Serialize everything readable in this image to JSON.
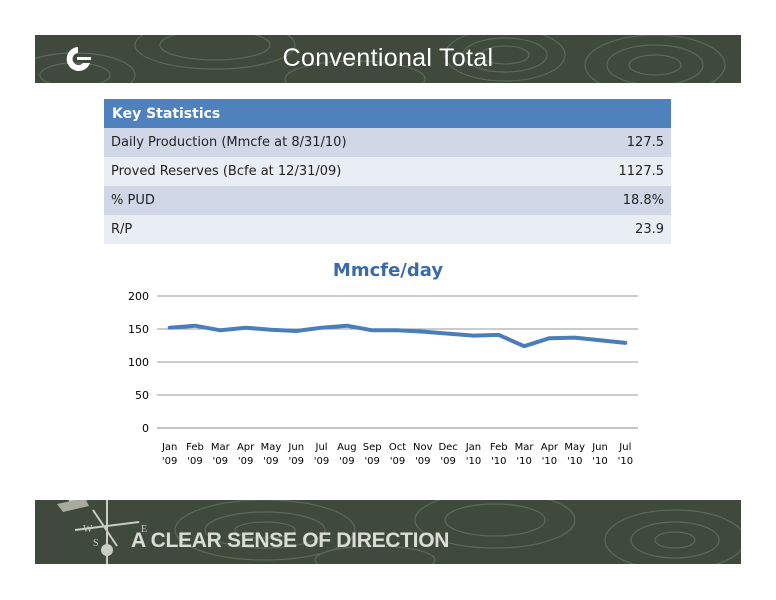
{
  "header": {
    "title": "Conventional Total",
    "logo_icon": "company-logo-icon",
    "banner_color": "#3f4a3d"
  },
  "stats": {
    "heading": "Key Statistics",
    "header_color": "#4f81bd",
    "rows": [
      {
        "label": "Daily Production (Mmcfe at 8/31/10)",
        "value": "127.5"
      },
      {
        "label": "Proved Reserves (Bcfe at 12/31/09)",
        "value": "1127.5"
      },
      {
        "label": "% PUD",
        "value": "18.8%"
      },
      {
        "label": "R/P",
        "value": "23.9"
      }
    ]
  },
  "chart_data": {
    "type": "line",
    "title": "Mmcfe/day",
    "categories": [
      [
        "Jan",
        "'09"
      ],
      [
        "Feb",
        "'09"
      ],
      [
        "Mar",
        "'09"
      ],
      [
        "Apr",
        "'09"
      ],
      [
        "May",
        "'09"
      ],
      [
        "Jun",
        "'09"
      ],
      [
        "Jul",
        "'09"
      ],
      [
        "Aug",
        "'09"
      ],
      [
        "Sep",
        "'09"
      ],
      [
        "Oct",
        "'09"
      ],
      [
        "Nov",
        "'09"
      ],
      [
        "Dec",
        "'09"
      ],
      [
        "Jan",
        "'10"
      ],
      [
        "Feb",
        "'10"
      ],
      [
        "Mar",
        "'10"
      ],
      [
        "Apr",
        "'10"
      ],
      [
        "May",
        "'10"
      ],
      [
        "Jun",
        "'10"
      ],
      [
        "Jul",
        "'10"
      ]
    ],
    "series": [
      {
        "values": [
          152,
          155,
          148,
          152,
          149,
          147,
          152,
          155,
          148,
          148,
          146,
          143,
          140,
          141,
          124,
          136,
          137,
          133,
          129
        ],
        "color": "#4a7ebb"
      }
    ],
    "ylim": [
      0,
      200
    ],
    "yticks": [
      0,
      50,
      100,
      150,
      200
    ],
    "grid": true,
    "legend": "none"
  },
  "footer": {
    "tagline": "A CLEAR SENSE OF DIRECTION",
    "icon": "weathervane-icon"
  }
}
